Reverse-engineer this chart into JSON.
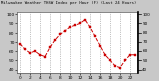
{
  "hours": [
    0,
    1,
    2,
    3,
    4,
    5,
    6,
    7,
    8,
    9,
    10,
    11,
    12,
    13,
    14,
    15,
    16,
    17,
    18,
    19,
    20,
    21,
    22,
    23
  ],
  "values": [
    68,
    62,
    58,
    60,
    56,
    54,
    64,
    72,
    78,
    82,
    86,
    88,
    90,
    94,
    86,
    76,
    66,
    56,
    50,
    44,
    42,
    50,
    56,
    56
  ],
  "line_color": "#cc0000",
  "marker_color": "#cc0000",
  "bg_color": "#c8c8c8",
  "plot_bg": "#ffffff",
  "grid_color": "#888888",
  "title": "Milwaukee Weather THSW Index per Hour (F) (Last 24 Hours)",
  "ylim": [
    36,
    102
  ],
  "xlim": [
    -0.5,
    23.5
  ],
  "yticks": [
    40,
    50,
    60,
    70,
    80,
    90,
    100
  ],
  "right_yticks": [
    100,
    90,
    80,
    70,
    60,
    50,
    40
  ]
}
